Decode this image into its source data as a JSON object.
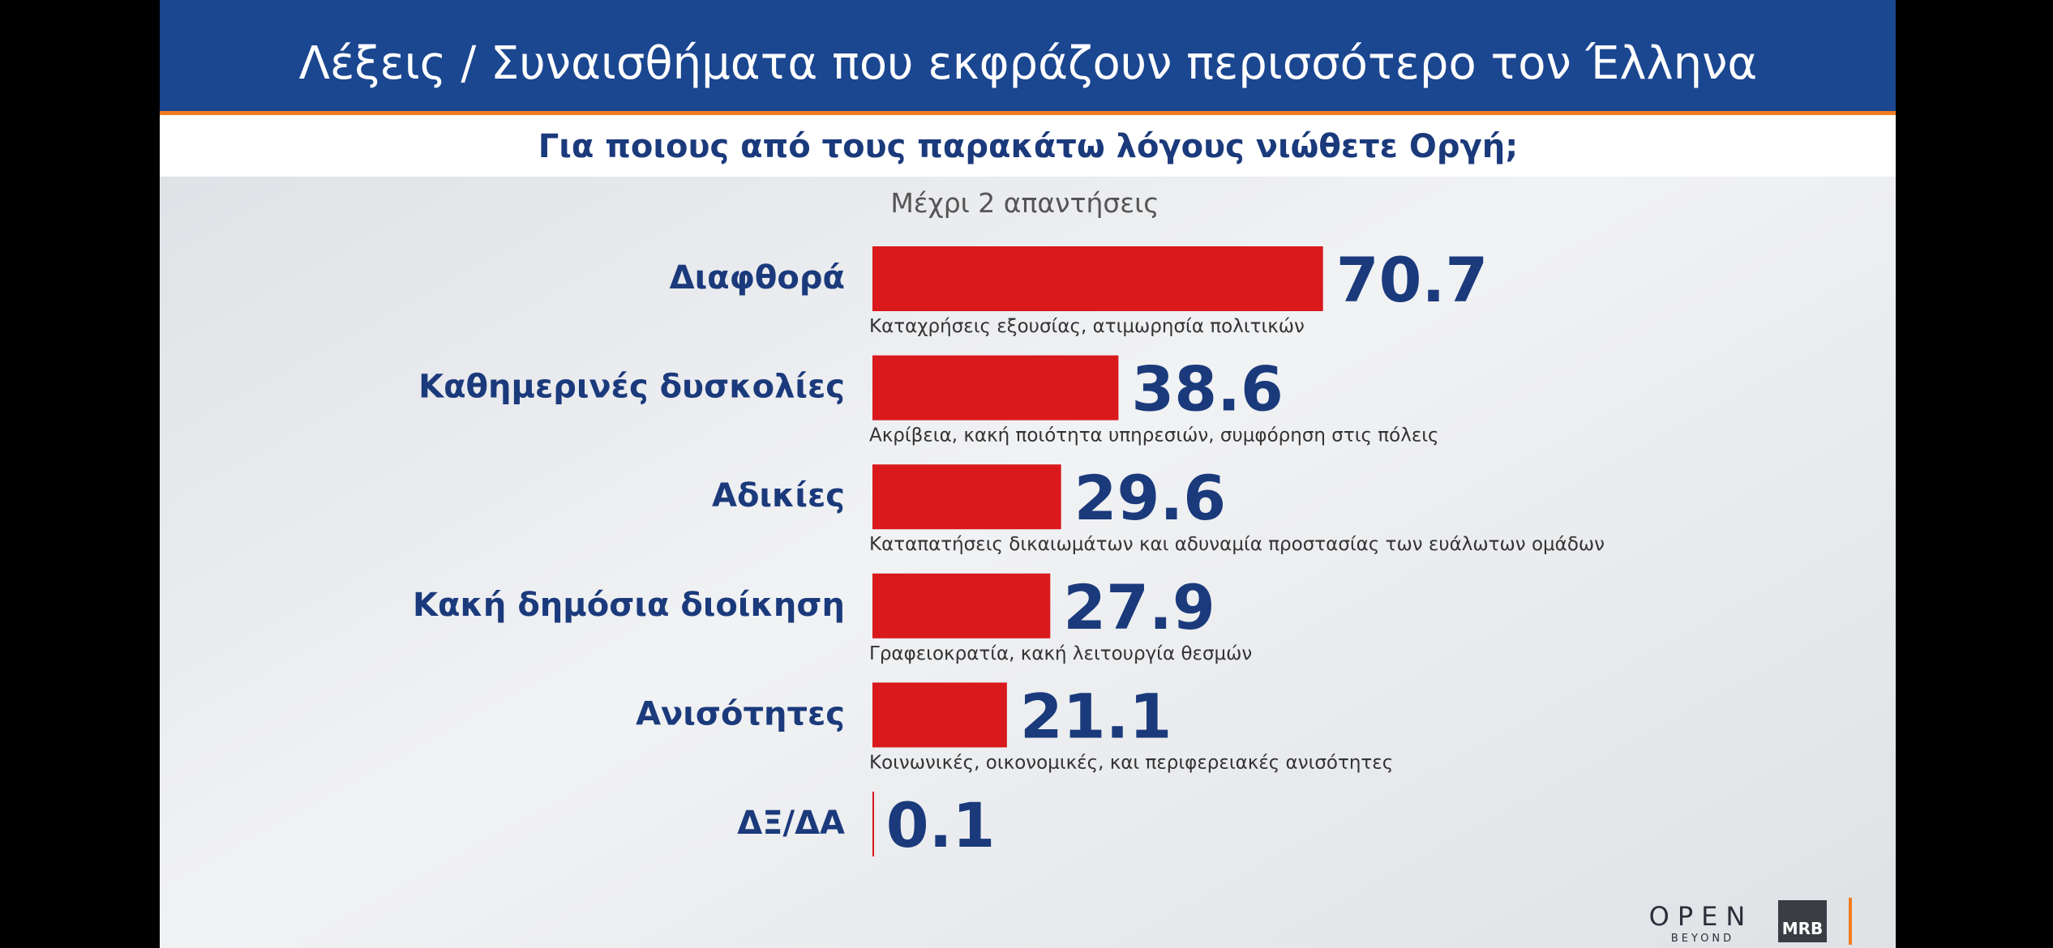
{
  "chart_data": {
    "type": "bar",
    "title": "Λέξεις / Συναισθήματα που εκφράζουν περισσότερο τον Έλληνα",
    "subtitle": "Για ποιους από τους παρακάτω λόγους νιώθετε Οργή;",
    "note": "Μέχρι 2 απαντήσεις",
    "categories": [
      "Διαφθορά",
      "Καθημερινές δυσκολίες",
      "Αδικίες",
      "Κακή δημόσια διοίκηση",
      "Ανισότητες",
      "ΔΞ/ΔΑ"
    ],
    "descriptions": [
      "Καταχρήσεις εξουσίας, ατιμωρησία πολιτικών",
      "Ακρίβεια, κακή ποιότητα υπηρεσιών, συμφόρηση στις πόλεις",
      "Καταπατήσεις δικαιωμάτων και αδυναμία προστασίας των ευάλωτων ομάδων",
      "Γραφειοκρατία, κακή λειτουργία θεσμών",
      "Κοινωνικές, οικονομικές, και περιφερειακές ανισότητες",
      null
    ],
    "values": [
      70.7,
      38.6,
      29.6,
      27.9,
      21.1,
      0.1
    ],
    "color": "#d9191c",
    "logos": {
      "open": "OPEN",
      "beyond": "BEYOND",
      "mrb": "MRB"
    }
  }
}
